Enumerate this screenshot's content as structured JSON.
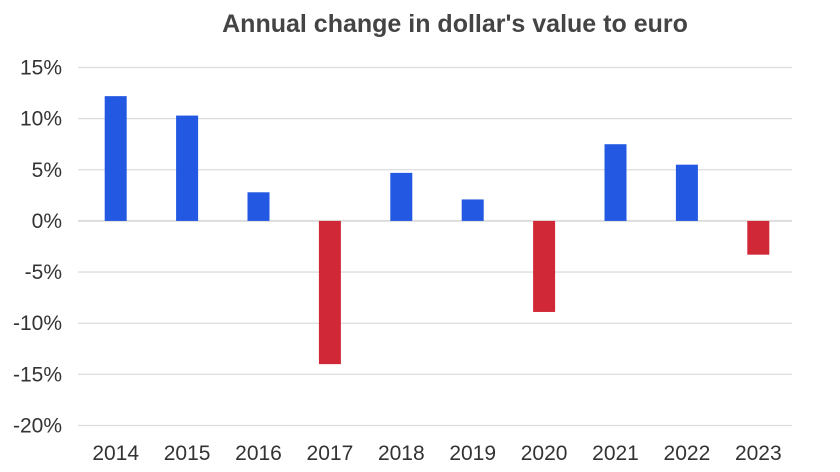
{
  "chart_data": {
    "type": "bar",
    "title": "Annual change in dollar's value to euro",
    "xlabel": "",
    "ylabel": "",
    "categories": [
      "2014",
      "2015",
      "2016",
      "2017",
      "2018",
      "2019",
      "2020",
      "2021",
      "2022",
      "2023"
    ],
    "values": [
      12.2,
      10.3,
      2.8,
      -14.0,
      4.7,
      2.1,
      -8.9,
      7.5,
      5.5,
      -3.3
    ],
    "ylim": [
      -20,
      15
    ],
    "yticks": [
      15,
      10,
      5,
      0,
      -5,
      -10,
      -15,
      -20
    ],
    "ytick_labels": [
      "15%",
      "10%",
      "5%",
      "0%",
      "-5%",
      "-10%",
      "-15%",
      "-20%"
    ],
    "grid": true,
    "colors": {
      "positive": "#2258e2",
      "negative": "#d02836",
      "grid": "#dddddd"
    }
  }
}
